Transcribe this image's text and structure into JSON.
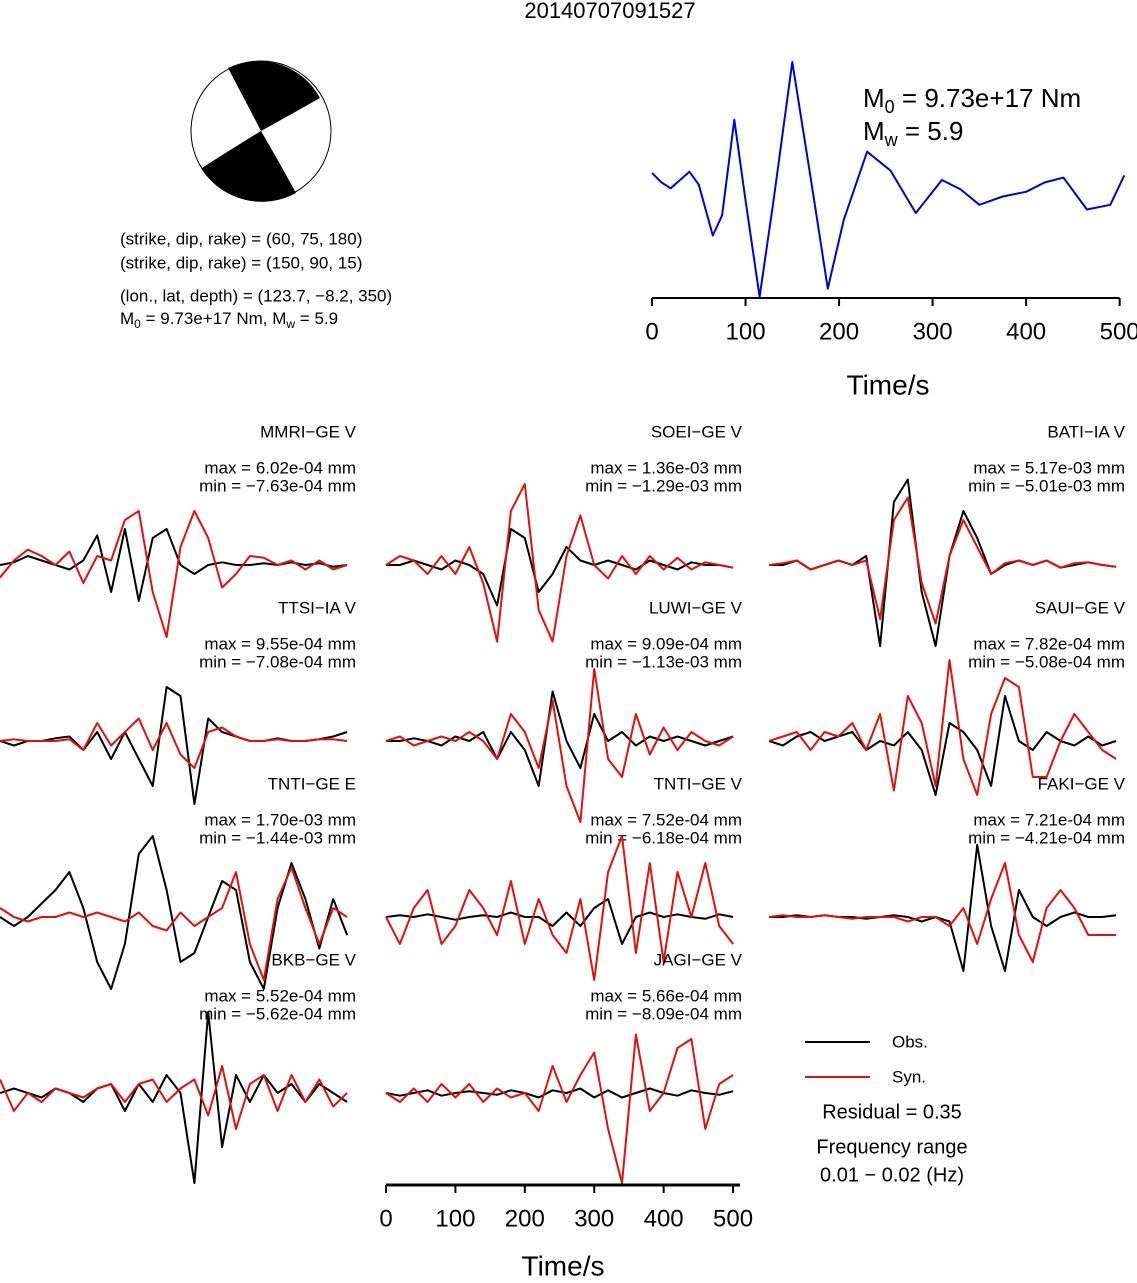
{
  "title": "20140707091527",
  "mechanism": {
    "lines": [
      "(strike, dip, rake) = (60, 75, 180)",
      "(strike, dip, rake) = (150, 90, 15)",
      "(lon., lat, depth) = (123.7, −8.2, 350)"
    ],
    "moment": {
      "m0_label": "M",
      "m0_sub": "0",
      "m0_text": " = 9.73e+17 Nm, ",
      "mw_label": "M",
      "mw_sub": "w",
      "mw_text": " = 5.9"
    }
  },
  "legend": {
    "obs": "Obs.",
    "syn": "Syn."
  },
  "residual": "Residual = 0.35",
  "frequency_label": "Frequency range",
  "frequency_range": "0.01 − 0.02 (Hz)",
  "chart_data": [
    {
      "type": "line",
      "color": "#0000dd",
      "xlim": [
        0,
        510
      ],
      "ylim": [
        -1,
        1
      ],
      "xticks": [
        0,
        100,
        200,
        300,
        400,
        500
      ],
      "xlabel": "Time/s",
      "x": [
        0,
        10,
        20,
        40,
        50,
        65,
        75,
        88,
        100,
        115,
        130,
        150,
        170,
        188,
        205,
        230,
        255,
        282,
        310,
        330,
        350,
        375,
        400,
        420,
        440,
        465,
        490,
        505
      ],
      "values": [
        0.06,
        -0.02,
        -0.07,
        0.07,
        -0.04,
        -0.47,
        -0.3,
        0.51,
        -0.17,
        -0.99,
        -0.17,
        1.0,
        0,
        -0.92,
        -0.34,
        0.24,
        0.08,
        -0.28,
        0,
        -0.08,
        -0.21,
        -0.14,
        -0.1,
        -0.02,
        0.02,
        -0.25,
        -0.21,
        0.04
      ],
      "annotation": {
        "m0_label": "M",
        "m0_sub": "0",
        "m0_text": " = 9.73e+17 Nm",
        "mw_label": "M",
        "mw_sub": "w",
        "mw_text": " = 5.9"
      }
    },
    {
      "type": "waveform",
      "xlim": [
        0,
        510
      ],
      "ylim": [
        -1,
        1
      ],
      "xticks": [
        0,
        100,
        200,
        300,
        400,
        500
      ],
      "xlabel": "Time/s",
      "obs_color": "#000000",
      "syn_color": "#dd1111",
      "x": [
        0,
        20,
        40,
        60,
        80,
        100,
        120,
        140,
        160,
        180,
        200,
        220,
        240,
        260,
        280,
        300,
        320,
        340,
        360,
        380,
        400,
        420,
        440,
        460,
        480,
        500
      ],
      "panels": [
        {
          "name": "MMRI−GE V",
          "max_label": "max = 6.02e-04 mm",
          "min_label": "min = −7.63e-04 mm",
          "obs": [
            0,
            0.03,
            0.1,
            0.05,
            0,
            -0.05,
            0.05,
            0.33,
            -0.3,
            0.4,
            -0.4,
            0.3,
            0.4,
            0,
            -0.1,
            0,
            0.03,
            0,
            0,
            0.02,
            0,
            0.03,
            0,
            0.02,
            -0.02,
            0
          ],
          "syn": [
            -0.14,
            0.05,
            0.17,
            0.1,
            0,
            0.15,
            -0.2,
            0.1,
            0.05,
            0.5,
            0.6,
            -0.3,
            -0.8,
            0.2,
            0.6,
            0.3,
            -0.25,
            -0.1,
            0.1,
            0.08,
            0,
            0.05,
            -0.05,
            0.05,
            -0.05,
            0
          ]
        },
        {
          "name": "SOEI−GE V",
          "max_label": "max = 1.36e-03 mm",
          "min_label": "min = −1.29e-03 mm",
          "obs": [
            0,
            0,
            0.05,
            0,
            -0.05,
            0.05,
            0,
            -0.1,
            -0.45,
            0.4,
            0.3,
            -0.3,
            -0.1,
            0.2,
            0.05,
            0,
            0.05,
            0,
            -0.05,
            0.05,
            0,
            -0.05,
            0.03,
            0,
            0,
            -0.03
          ],
          "syn": [
            0,
            0.1,
            0.05,
            -0.1,
            0.1,
            -0.1,
            0.2,
            -0.2,
            -0.85,
            0.6,
            0.9,
            -0.5,
            -0.85,
            0.1,
            0.55,
            0,
            -0.15,
            0.1,
            -0.1,
            0.1,
            -0.05,
            0.08,
            -0.05,
            0.03,
            0,
            -0.03
          ]
        },
        {
          "name": "BATI−IA V",
          "max_label": "max = 5.17e-03 mm",
          "min_label": "min = −5.01e-03 mm",
          "obs": [
            0,
            0,
            0.05,
            -0.05,
            0,
            0.05,
            0,
            0.1,
            -0.9,
            0.7,
            0.95,
            -0.3,
            -0.9,
            0.1,
            0.6,
            0.3,
            -0.1,
            0,
            0.05,
            0,
            0.05,
            -0.03,
            0,
            0.03,
            0,
            -0.02
          ],
          "syn": [
            0,
            0.02,
            0.05,
            -0.05,
            0,
            0.05,
            0,
            0.05,
            -0.6,
            0.5,
            0.75,
            -0.2,
            -0.65,
            0.1,
            0.5,
            0.2,
            -0.1,
            0.02,
            0.05,
            0,
            0.05,
            -0.03,
            0.02,
            0.03,
            0,
            -0.02
          ]
        },
        {
          "name": "TTSI−IA V",
          "max_label": "max = 9.55e-04 mm",
          "min_label": "min = −7.08e-04 mm",
          "obs": [
            0,
            -0.05,
            0,
            0,
            0.03,
            0.05,
            -0.1,
            0.1,
            -0.2,
            0.1,
            -0.2,
            -0.5,
            0.6,
            0.5,
            -0.7,
            0.25,
            0.1,
            0.05,
            0,
            0,
            0.03,
            0,
            0,
            0.02,
            0.05,
            0.1
          ],
          "syn": [
            0,
            0.02,
            0,
            0,
            0,
            0.02,
            -0.1,
            0.2,
            -0.05,
            0.1,
            0.25,
            -0.1,
            0.2,
            -0.15,
            -0.3,
            0.1,
            0.15,
            0.05,
            0,
            0,
            0.02,
            0,
            0,
            0.02,
            0.02,
            0
          ]
        },
        {
          "name": "LUWI−GE V",
          "max_label": "max = 9.09e-04 mm",
          "min_label": "min = −1.13e-03 mm",
          "obs": [
            0,
            0,
            0.03,
            0,
            -0.05,
            0.05,
            0,
            0.1,
            -0.2,
            0.1,
            -0.1,
            -0.5,
            0.55,
            0,
            -0.3,
            0.3,
            0,
            0.1,
            -0.05,
            0.05,
            0,
            0.05,
            0,
            -0.05,
            0,
            0.05
          ],
          "syn": [
            0,
            0.05,
            -0.05,
            0,
            0.05,
            0,
            0.1,
            0,
            -0.2,
            0.3,
            0.1,
            -0.3,
            0.45,
            -0.5,
            -0.9,
            0.8,
            -0.2,
            -0.4,
            0.3,
            -0.15,
            0.15,
            -0.1,
            0.1,
            0,
            -0.05,
            0.05
          ]
        },
        {
          "name": "SAUI−GE V",
          "max_label": "max = 7.82e-04 mm",
          "min_label": "min = −5.08e-04 mm",
          "obs": [
            0,
            -0.05,
            0.05,
            0.1,
            0,
            0.05,
            0.1,
            -0.1,
            0,
            -0.05,
            0.1,
            -0.1,
            -0.6,
            0.2,
            0.1,
            -0.1,
            -0.5,
            0.5,
            0,
            -0.1,
            0.1,
            0,
            -0.05,
            0.05,
            -0.05,
            0
          ],
          "syn": [
            0,
            0.05,
            0.1,
            -0.1,
            0.1,
            0.05,
            0.2,
            -0.1,
            0.3,
            -0.55,
            0.5,
            0.2,
            -0.5,
            0.9,
            -0.2,
            -0.6,
            0.3,
            0.7,
            0.6,
            -0.4,
            -0.4,
            0,
            0.3,
            0.1,
            -0.1,
            -0.2
          ]
        },
        {
          "name": "TNTI−GE E",
          "max_label": "max = 1.70e-03 mm",
          "min_label": "min = −1.44e-03 mm",
          "obs": [
            0,
            -0.1,
            0,
            0.15,
            0.3,
            0.5,
            0.1,
            -0.5,
            -0.8,
            -0.3,
            0.7,
            0.9,
            0.3,
            -0.5,
            -0.4,
            0,
            0.4,
            0.3,
            -0.5,
            -0.8,
            0.1,
            0.6,
            0.2,
            -0.35,
            0.2,
            -0.2
          ],
          "syn": [
            0.1,
            0,
            -0.05,
            0,
            0,
            0.05,
            0,
            0.05,
            0,
            -0.05,
            0.05,
            -0.1,
            -0.15,
            0.05,
            -0.1,
            0,
            0.1,
            0.5,
            -0.3,
            -0.7,
            0.2,
            0.55,
            0.1,
            -0.3,
            0.1,
            0
          ]
        },
        {
          "name": "TNTI−GE V",
          "max_label": "max = 7.52e-04 mm",
          "min_label": "min = −6.18e-04 mm",
          "obs": [
            0,
            0.02,
            0,
            0.03,
            0,
            -0.03,
            0,
            0.02,
            0,
            0.05,
            0,
            0,
            -0.1,
            0.05,
            -0.1,
            0.1,
            0.2,
            -0.3,
            0,
            0.05,
            0,
            0.03,
            0,
            -0.02,
            0.03,
            0
          ],
          "syn": [
            0,
            -0.3,
            0.1,
            0.3,
            -0.3,
            -0.1,
            0.3,
            0.1,
            -0.2,
            0.4,
            -0.3,
            0.2,
            -0.2,
            -0.4,
            0.2,
            -0.7,
            0.5,
            0.9,
            -0.4,
            0.6,
            -0.5,
            0.5,
            0,
            0.6,
            -0.1,
            -0.3
          ]
        },
        {
          "name": "FAKI−GE V",
          "max_label": "max = 7.21e-04 mm",
          "min_label": "min = −4.21e-04 mm",
          "obs": [
            0,
            0,
            0.02,
            0,
            0.02,
            0,
            0,
            -0.02,
            0,
            0.02,
            0,
            -0.05,
            0,
            -0.05,
            -0.6,
            0.8,
            -0.1,
            -0.6,
            0.3,
            0,
            -0.1,
            0,
            0.05,
            0,
            0,
            0.02
          ],
          "syn": [
            0,
            0.02,
            0,
            0,
            0.02,
            0,
            -0.02,
            0,
            0,
            0,
            -0.05,
            0,
            0,
            -0.1,
            0.1,
            -0.3,
            0.2,
            0.6,
            -0.2,
            -0.5,
            0.1,
            0.3,
            0.1,
            -0.2,
            -0.2,
            -0.2
          ]
        },
        {
          "name": "BKB−GE V",
          "max_label": "max = 5.52e-04 mm",
          "min_label": "min = −5.62e-04 mm",
          "obs": [
            0,
            0.05,
            0,
            -0.05,
            0.05,
            0,
            -0.1,
            0.05,
            0.1,
            -0.2,
            0.1,
            -0.1,
            0.2,
            0,
            -1.0,
            0.9,
            -0.6,
            0.2,
            -0.1,
            0.2,
            0,
            0.1,
            -0.1,
            0.1,
            0,
            -0.1
          ],
          "syn": [
            0.15,
            -0.2,
            0,
            -0.1,
            0.05,
            0,
            -0.05,
            0.05,
            0.1,
            -0.1,
            0.1,
            0.15,
            -0.1,
            0.05,
            0.15,
            -0.25,
            0.3,
            -0.4,
            0.1,
            0.2,
            -0.2,
            0.2,
            -0.1,
            0.15,
            -0.15,
            0
          ]
        },
        {
          "name": "JAGI−GE V",
          "max_label": "max = 5.66e-04 mm",
          "min_label": "min = −8.09e-04 mm",
          "obs": [
            0,
            -0.03,
            0,
            0.03,
            -0.03,
            0,
            0.02,
            0,
            -0.02,
            0.03,
            0,
            -0.05,
            0.03,
            0,
            0.05,
            -0.05,
            0.03,
            -0.05,
            0,
            0.05,
            0,
            -0.03,
            0.03,
            0,
            -0.02,
            0.02
          ],
          "syn": [
            0,
            -0.1,
            0.05,
            -0.1,
            0.1,
            -0.05,
            0.1,
            -0.1,
            0.05,
            -0.05,
            0,
            -0.2,
            0.3,
            -0.1,
            0.2,
            0.45,
            -0.4,
            -1.0,
            0.65,
            -0.2,
            0,
            0.5,
            0.6,
            -0.4,
            0.1,
            0.2
          ]
        }
      ]
    }
  ]
}
